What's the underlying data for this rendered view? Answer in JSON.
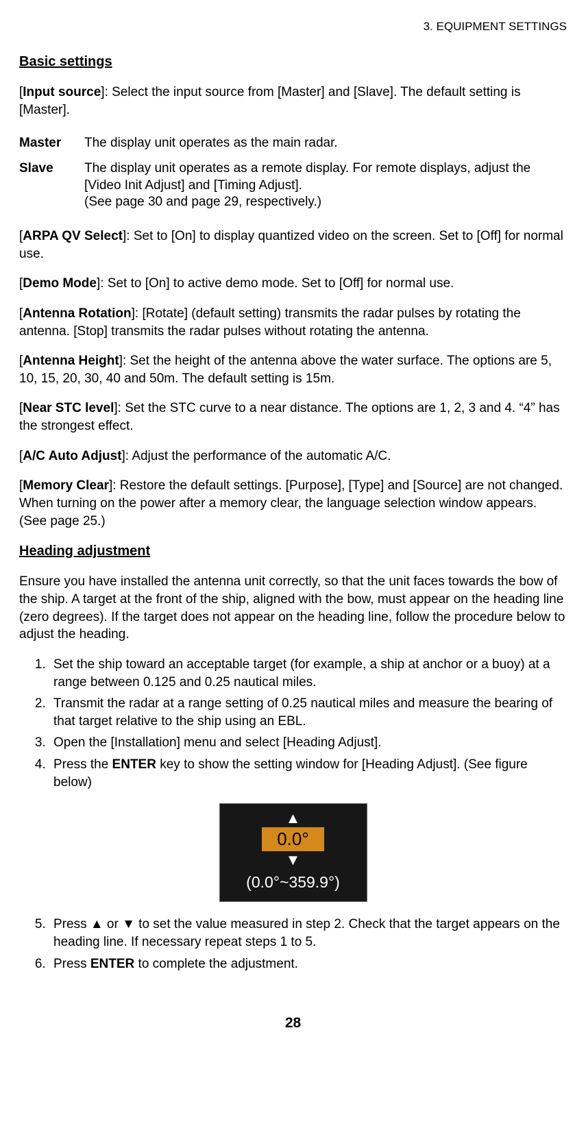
{
  "header": {
    "chapter": "3.  EQUIPMENT SETTINGS"
  },
  "sections": {
    "basic_title": "Basic settings",
    "heading_title": "Heading adjustment"
  },
  "paras": {
    "input_source": "[<b>Input source</b>]: Select the input source from [Master] and [Slave]. The default setting is [Master].",
    "arpa": "[<b>ARPA QV Select</b>]: Set to [On] to display quantized video on the screen. Set to [Off] for normal use.",
    "demo": "[<b>Demo Mode</b>]: Set to [On] to active demo mode. Set to [Off] for normal use.",
    "rotation": "[<b>Antenna Rotation</b>]: [Rotate] (default setting) transmits the radar pulses by rotating the antenna. [Stop] transmits the radar pulses without rotating the antenna.",
    "height": "[<b>Antenna Height</b>]: Set the height of the antenna above the water surface. The options are 5, 10, 15, 20, 30, 40 and 50m. The default setting is 15m.",
    "stc": "[<b>Near STC level</b>]: Set the STC curve to a near distance. The options are 1, 2, 3 and 4. “4” has the strongest effect.",
    "ac": "[<b>A/C Auto Adjust</b>]: Adjust the performance of the automatic A/C.",
    "memory": "[<b>Memory Clear</b>]: Restore the default settings. [Purpose], [Type] and [Source] are not changed. When turning on the power after a memory clear, the language selection window appears. (See page 25.)",
    "heading_intro": "Ensure you have installed the antenna unit correctly, so that the unit faces towards the bow of the ship. A target at the front of the ship, aligned with the bow, must appear on the heading line (zero degrees). If the target does not appear on the heading line, follow the procedure below to adjust the heading."
  },
  "defs": {
    "master": {
      "term": "Master",
      "desc": "The display unit operates as the main radar."
    },
    "slave": {
      "term": "Slave",
      "desc": "The display unit operates as a remote display. For remote displays, adjust the [Video Init Adjust] and [Timing Adjust].\n(See page 30 and page 29, respectively.)"
    }
  },
  "steps_a": [
    "Set the ship toward an acceptable target (for example, a ship at anchor or a buoy) at a range between 0.125 and 0.25 nautical miles.",
    "Transmit the radar at a range setting of 0.25 nautical miles and measure the bearing of that target relative to the ship using an EBL.",
    "Open the [Installation] menu and select [Heading Adjust].",
    "Press the <b>ENTER</b> key to show the setting window for [Heading Adjust]. (See figure below)"
  ],
  "steps_b": [
    "Press ▲ or ▼ to set the value measured in step 2. Check that the target appears on the heading line. If necessary repeat steps 1 to 5.",
    "Press <b>ENTER</b> to complete the adjustment."
  ],
  "figure": {
    "value": "0.0°",
    "range": "(0.0°~359.9°)",
    "value_bg": "#d48a1a",
    "box_bg": "#171717"
  },
  "page_number": "28"
}
